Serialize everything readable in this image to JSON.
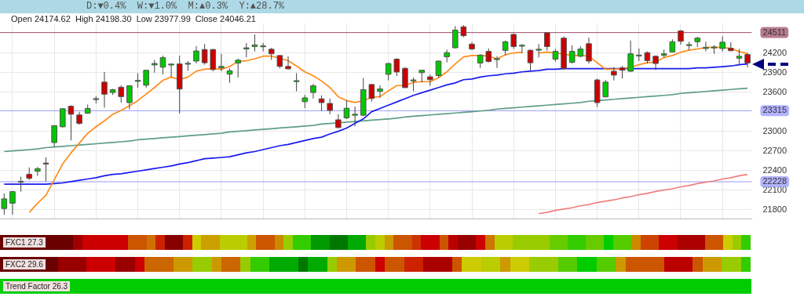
{
  "chart_data": {
    "type": "candlestick",
    "title": "D:▼0.4%  W:▼1.0%  M:▲0.3%  Y:▲28.7%",
    "subtitle": "Open 24174.62  High 24198.30  Low 23977.99  Close 24046.21",
    "categories": [
      null,
      null,
      null,
      null,
      null,
      null,
      null,
      null,
      null,
      null,
      null,
      null,
      null,
      null,
      null,
      null,
      null,
      null,
      null,
      null,
      null,
      null,
      null,
      null,
      null,
      null,
      null,
      null,
      null,
      null,
      null,
      null,
      null,
      null,
      null,
      null,
      null,
      null,
      null,
      null,
      null,
      null,
      null,
      null,
      null,
      null,
      null,
      null,
      null,
      null,
      null,
      null,
      null,
      null,
      null,
      null,
      null,
      null,
      null,
      null,
      null,
      null,
      null,
      null,
      null,
      null,
      null,
      null,
      null,
      null,
      null,
      null,
      null,
      null,
      null,
      null,
      null,
      null,
      null,
      null,
      null,
      null,
      null,
      null,
      null,
      null,
      null,
      null,
      null,
      null
    ],
    "ohlc": [
      [
        21818,
        22047,
        21725,
        21966
      ],
      [
        21899,
        22085,
        21725,
        22077
      ],
      [
        22232,
        22306,
        22077,
        22235
      ],
      [
        22343,
        22447,
        22255,
        22280
      ],
      [
        22388,
        22454,
        22318,
        22428
      ],
      [
        22514,
        22602,
        22232,
        22499
      ],
      [
        22828,
        23087,
        22761,
        23087
      ],
      [
        23069,
        23353,
        23058,
        23346
      ],
      [
        23383,
        23398,
        22861,
        23261
      ],
      [
        23250,
        23298,
        23102,
        23120
      ],
      [
        23276,
        23409,
        23268,
        23350
      ],
      [
        23495,
        23538,
        23428,
        23500
      ],
      [
        23753,
        23908,
        23361,
        23568
      ],
      [
        23594,
        23649,
        23557,
        23638
      ],
      [
        23675,
        23705,
        23439,
        23531
      ],
      [
        23439,
        23705,
        23335,
        23697
      ],
      [
        23775,
        23890,
        23668,
        23779
      ],
      [
        23705,
        23942,
        23668,
        23934
      ],
      [
        24016,
        24093,
        23897,
        24038
      ],
      [
        23982,
        24156,
        23871,
        24127
      ],
      [
        24025,
        24038,
        23834,
        24029
      ],
      [
        24031,
        24156,
        23272,
        23646
      ],
      [
        24038,
        24075,
        23927,
        24041
      ],
      [
        24075,
        24304,
        24038,
        24230
      ],
      [
        24252,
        24334,
        24019,
        24049
      ],
      [
        24252,
        24260,
        23919,
        23945
      ],
      [
        23971,
        24186,
        23919,
        23993
      ],
      [
        23875,
        23964,
        23742,
        23927
      ],
      [
        24045,
        24112,
        23823,
        24089
      ],
      [
        24260,
        24352,
        24130,
        24278
      ],
      [
        24297,
        24482,
        24223,
        24323
      ],
      [
        24304,
        24352,
        24223,
        24308
      ],
      [
        24256,
        24278,
        24093,
        24186
      ],
      [
        24160,
        24167,
        23964,
        23993
      ],
      [
        23993,
        24149,
        23945,
        23956
      ],
      [
        23771,
        23890,
        23612,
        23775
      ],
      [
        23453,
        23557,
        23354,
        23512
      ],
      [
        23594,
        23723,
        23501,
        23697
      ],
      [
        23497,
        23550,
        23309,
        23439
      ],
      [
        23427,
        23501,
        23261,
        23320
      ],
      [
        23176,
        23261,
        23046,
        23057
      ],
      [
        23205,
        23475,
        23187,
        23353
      ],
      [
        23246,
        23379,
        23076,
        23261
      ],
      [
        23246,
        23816,
        23231,
        23638
      ],
      [
        23716,
        23723,
        23453,
        23502
      ],
      [
        23612,
        23705,
        23513,
        23649
      ],
      [
        23872,
        24045,
        23779,
        24038
      ],
      [
        24105,
        24119,
        23846,
        23908
      ],
      [
        23964,
        23982,
        23668,
        23668
      ],
      [
        23784,
        23823,
        23612,
        23786
      ],
      [
        23897,
        23942,
        23749,
        23934
      ],
      [
        23834,
        23871,
        23697,
        23790
      ],
      [
        23853,
        24082,
        23823,
        24075
      ],
      [
        24141,
        24249,
        24056,
        24204
      ],
      [
        24278,
        24611,
        24267,
        24549
      ],
      [
        24600,
        24625,
        24441,
        24463
      ],
      [
        24334,
        24364,
        24241,
        24260
      ],
      [
        24045,
        24178,
        23971,
        24167
      ],
      [
        24223,
        24267,
        24056,
        24067
      ],
      [
        24110,
        24149,
        23971,
        24112
      ],
      [
        24238,
        24390,
        24167,
        24371
      ],
      [
        24482,
        24500,
        24260,
        24297
      ],
      [
        24313,
        24334,
        24193,
        24317
      ],
      [
        24241,
        24249,
        23927,
        24049
      ],
      [
        24252,
        24334,
        24130,
        24256
      ],
      [
        24508,
        24519,
        24234,
        24297
      ],
      [
        24104,
        24260,
        24067,
        24223
      ],
      [
        24426,
        24452,
        23938,
        23964
      ],
      [
        24056,
        24315,
        24038,
        24223
      ],
      [
        24149,
        24304,
        24130,
        24260
      ],
      [
        24341,
        24437,
        24038,
        24075
      ],
      [
        23786,
        23808,
        23372,
        23439
      ],
      [
        23527,
        23786,
        23520,
        23753
      ],
      [
        23919,
        23982,
        23779,
        23860
      ],
      [
        23971,
        24001,
        23808,
        23934
      ],
      [
        23919,
        24390,
        23908,
        24186
      ],
      [
        24165,
        24267,
        24075,
        24167
      ],
      [
        24204,
        24223,
        24038,
        24082
      ],
      [
        24149,
        24160,
        23938,
        24038
      ],
      [
        24164,
        24252,
        24130,
        24186
      ],
      [
        24215,
        24408,
        24204,
        24371
      ],
      [
        24537,
        24549,
        24327,
        24378
      ],
      [
        24325,
        24371,
        24241,
        24327
      ],
      [
        24371,
        24445,
        24289,
        24426
      ],
      [
        24267,
        24371,
        24223,
        24286
      ],
      [
        24288,
        24315,
        24186,
        24290
      ],
      [
        24267,
        24452,
        24223,
        24364
      ],
      [
        24271,
        24364,
        24223,
        24234
      ],
      [
        24119,
        24260,
        24019,
        24149
      ],
      [
        24174.62,
        24198.3,
        23977.99,
        24046.21
      ]
    ],
    "series": [
      {
        "type": "line",
        "color": "#ff8c1a",
        "values": [
          null,
          null,
          null,
          21760,
          21900,
          22020,
          22260,
          22500,
          22670,
          22820,
          22970,
          23070,
          23160,
          23260,
          23320,
          23390,
          23470,
          23570,
          23670,
          23780,
          23830,
          23790,
          23830,
          23920,
          23950,
          23960,
          23950,
          23990,
          24070,
          24080,
          24110,
          24150,
          24150,
          24120,
          24080,
          24000,
          23910,
          23850,
          23770,
          23670,
          23530,
          23470,
          23440,
          23470,
          23520,
          23530,
          23620,
          23700,
          23700,
          23750,
          23760,
          23760,
          23820,
          23910,
          24030,
          24140,
          24160,
          24160,
          24150,
          24110,
          24170,
          24200,
          24210,
          null,
          24200,
          24210,
          24200,
          24180,
          24160,
          24160,
          24150,
          24050,
          23950,
          23950,
          23960,
          23980,
          24020,
          24050,
          24060,
          24130,
          24160,
          24210,
          24240,
          24260,
          24280,
          24290,
          24280,
          24270,
          24220,
          24190
        ]
      },
      {
        "type": "line",
        "color": "#1a1aee",
        "values": [
          22190,
          22190,
          22190,
          22190,
          22190,
          22190,
          22200,
          22210,
          22230,
          22250,
          22270,
          22290,
          22320,
          22340,
          22350,
          22370,
          22390,
          22410,
          22430,
          22450,
          22470,
          22500,
          22520,
          22550,
          22580,
          22590,
          22600,
          22610,
          22640,
          22670,
          22690,
          22720,
          22750,
          22780,
          22800,
          22830,
          22860,
          22890,
          22910,
          22960,
          23000,
          23050,
          23120,
          23190,
          23300,
          23350,
          23400,
          23450,
          23500,
          23550,
          23590,
          23630,
          23670,
          23710,
          23740,
          23790,
          23800,
          23830,
          23850,
          23860,
          23880,
          23890,
          23910,
          23920,
          23930,
          23950,
          23950,
          23960,
          23960,
          23960,
          23960,
          23960,
          23960,
          23960,
          23960,
          23960,
          23960,
          23960,
          23960,
          23960,
          23960,
          23960,
          23960,
          23970,
          23970,
          23980,
          23990,
          24000,
          24020,
          24030
        ]
      },
      {
        "type": "line",
        "color": "#5f9e86",
        "values": [
          22690,
          22700,
          22710,
          22720,
          22730,
          22750,
          22760,
          22770,
          22780,
          22790,
          22800,
          22810,
          22820,
          22830,
          22840,
          22850,
          22870,
          22880,
          22890,
          22900,
          22910,
          22920,
          22930,
          22940,
          22950,
          22960,
          22970,
          22990,
          23000,
          23010,
          23020,
          23030,
          23040,
          23050,
          23060,
          23070,
          23080,
          23090,
          23110,
          23120,
          23130,
          23140,
          23150,
          23160,
          23170,
          23180,
          23190,
          23200,
          23220,
          23230,
          23240,
          23250,
          23260,
          23270,
          23280,
          23290,
          23300,
          23310,
          23320,
          23340,
          23350,
          23360,
          23370,
          23380,
          23390,
          23400,
          23410,
          23420,
          23430,
          23440,
          23460,
          23470,
          23480,
          23490,
          23500,
          23510,
          23520,
          23530,
          23540,
          23550,
          23560,
          23580,
          23590,
          23600,
          23610,
          23620,
          23630,
          23640,
          23650,
          23660
        ]
      },
      {
        "type": "line",
        "color": "#f08080",
        "values": [
          null,
          null,
          null,
          null,
          null,
          null,
          null,
          null,
          null,
          null,
          null,
          null,
          null,
          null,
          null,
          null,
          null,
          null,
          null,
          null,
          null,
          null,
          null,
          null,
          null,
          null,
          null,
          null,
          null,
          null,
          null,
          null,
          null,
          null,
          null,
          null,
          null,
          null,
          null,
          null,
          null,
          null,
          null,
          null,
          null,
          null,
          null,
          null,
          null,
          null,
          null,
          null,
          null,
          null,
          null,
          null,
          null,
          null,
          null,
          null,
          null,
          null,
          null,
          null,
          21740,
          21760,
          21790,
          21810,
          21830,
          21860,
          21880,
          21910,
          21930,
          21950,
          21980,
          22000,
          22030,
          22050,
          22080,
          22100,
          22120,
          22150,
          22170,
          22200,
          22220,
          22240,
          22270,
          22290,
          22320,
          22340
        ]
      }
    ],
    "ylim": [
      21660,
      24650
    ],
    "yticks": [
      21800,
      22100,
      22400,
      22700,
      23000,
      23600,
      23900,
      24200
    ],
    "ref_lines": [
      {
        "axis": "y",
        "value": 24511,
        "label": "24511",
        "color": "#a0506e"
      },
      {
        "axis": "y",
        "value": 23315,
        "label": "23315",
        "color": "#9999ff"
      },
      {
        "axis": "y",
        "value": 22228,
        "label": "22228",
        "color": "#9999ff"
      }
    ],
    "grid": true,
    "legend": false,
    "tick_labels": "y",
    "annotations": [
      "FXC1 27.3",
      "FXC2 29.6",
      "Trend Factor 26.3"
    ]
  }
}
